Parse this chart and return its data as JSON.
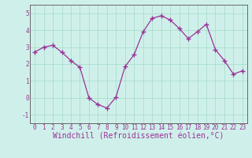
{
  "x": [
    0,
    1,
    2,
    3,
    4,
    5,
    6,
    7,
    8,
    9,
    10,
    11,
    12,
    13,
    14,
    15,
    16,
    17,
    18,
    19,
    20,
    21,
    22,
    23
  ],
  "y": [
    2.7,
    3.0,
    3.1,
    2.7,
    2.2,
    1.8,
    0.0,
    -0.4,
    -0.6,
    0.05,
    1.85,
    2.55,
    3.9,
    4.7,
    4.85,
    4.6,
    4.1,
    3.5,
    3.9,
    4.35,
    2.85,
    2.2,
    1.4,
    1.6
  ],
  "line_color": "#993399",
  "marker": "+",
  "markersize": 4,
  "linewidth": 0.9,
  "bg_color": "#cff0ea",
  "grid_color": "#aaddcc",
  "xlabel": "Windchill (Refroidissement éolien,°C)",
  "xlim": [
    -0.5,
    23.5
  ],
  "ylim": [
    -1.5,
    5.5
  ],
  "yticks": [
    -1,
    0,
    1,
    2,
    3,
    4,
    5
  ],
  "xticks": [
    0,
    1,
    2,
    3,
    4,
    5,
    6,
    7,
    8,
    9,
    10,
    11,
    12,
    13,
    14,
    15,
    16,
    17,
    18,
    19,
    20,
    21,
    22,
    23
  ],
  "tick_fontsize": 5.5,
  "xlabel_fontsize": 7.0,
  "spine_color": "#666666"
}
